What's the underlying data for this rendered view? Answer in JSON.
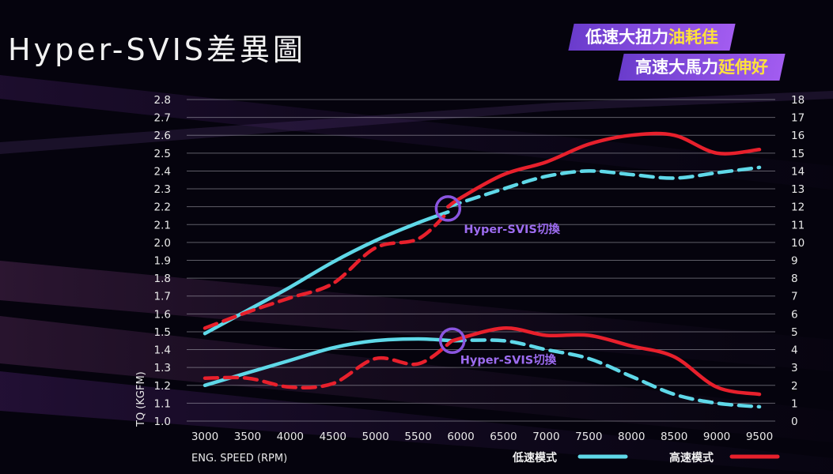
{
  "page": {
    "title": "Hyper-SVIS差異圖",
    "banner1": {
      "text": "低速大扭力",
      "highlight": "油耗佳"
    },
    "banner2": {
      "text": "高速大馬力",
      "highlight": "延伸好"
    }
  },
  "colors": {
    "low_speed": "#5fd8e8",
    "high_speed": "#e8202c",
    "accent": "#8a55e0",
    "annotation": "#9d6cf0"
  },
  "chart_data": {
    "type": "line",
    "xlabel": "ENG. SPEED (RPM)",
    "ylabel": "TQ (KGFM)",
    "xlim": [
      3000,
      9500
    ],
    "ylim": [
      1.0,
      2.8
    ],
    "ylim_right": [
      0,
      18
    ],
    "x_ticks": [
      "3000",
      "3500",
      "4000",
      "4500",
      "5000",
      "5500",
      "6000",
      "6500",
      "7000",
      "7500",
      "8000",
      "8500",
      "9000",
      "9500"
    ],
    "y_ticks": [
      "1.0",
      "1.1",
      "1.2",
      "1.3",
      "1.4",
      "1.5",
      "1.6",
      "1.7",
      "1.8",
      "1.9",
      "2.0",
      "2.1",
      "2.2",
      "2.3",
      "2.4",
      "2.5",
      "2.6",
      "2.7",
      "2.8"
    ],
    "y_right_ticks": [
      "0",
      "1",
      "2",
      "3",
      "4",
      "5",
      "6",
      "7",
      "8",
      "9",
      "10",
      "11",
      "12",
      "13",
      "14",
      "15",
      "16",
      "17",
      "18"
    ],
    "grid": true,
    "legend": {
      "position": "bottom-right",
      "items": [
        {
          "name": "低速模式",
          "series": "low"
        },
        {
          "name": "高速模式",
          "series": "high"
        }
      ]
    },
    "annotations": [
      {
        "text": "Hyper-SVIS切換",
        "x": 5850,
        "y_right": 11.9
      },
      {
        "text": "Hyper-SVIS切換",
        "x": 5900,
        "y": 1.45
      }
    ],
    "series": [
      {
        "key": "low_torque",
        "mode": "low",
        "axis": "left",
        "style": "solid",
        "x": [
          3000,
          3500,
          4000,
          4500,
          5000,
          5500,
          5850
        ],
        "y": [
          1.49,
          1.62,
          1.75,
          1.89,
          2.01,
          2.11,
          2.17
        ]
      },
      {
        "key": "low_power",
        "mode": "low",
        "axis": "right",
        "style": "dashed",
        "x": [
          5850,
          6500,
          7000,
          7500,
          8000,
          8500,
          9000,
          9500
        ],
        "y": [
          12.0,
          13.0,
          13.7,
          14.0,
          13.8,
          13.6,
          13.9,
          14.2
        ]
      },
      {
        "key": "high_power",
        "mode": "high",
        "axis": "right",
        "style": "solid",
        "x": [
          5850,
          6000,
          6500,
          7000,
          7500,
          8000,
          8500,
          9000,
          9500
        ],
        "y": [
          12.0,
          12.5,
          13.8,
          14.5,
          15.5,
          16.0,
          16.0,
          15.0,
          15.2
        ]
      },
      {
        "key": "high_torque",
        "mode": "high",
        "axis": "left",
        "style": "dashed",
        "x": [
          3000,
          3500,
          4000,
          4500,
          5000,
          5500,
          5850
        ],
        "y": [
          1.52,
          1.61,
          1.69,
          1.77,
          1.97,
          2.02,
          2.17
        ]
      },
      {
        "key": "low_torque_2",
        "mode": "low",
        "axis": "left",
        "style": "solid",
        "x": [
          3000,
          3500,
          4000,
          4500,
          5000,
          5500,
          5900
        ],
        "y": [
          1.2,
          1.27,
          1.34,
          1.41,
          1.45,
          1.46,
          1.45
        ]
      },
      {
        "key": "low_power_2",
        "mode": "low",
        "axis": "right",
        "style": "dashed",
        "x": [
          5900,
          6500,
          7000,
          7500,
          8000,
          8500,
          9000,
          9500
        ],
        "y": [
          4.5,
          4.5,
          4.0,
          3.5,
          2.5,
          1.5,
          1.0,
          0.8
        ]
      },
      {
        "key": "high_power_2",
        "mode": "high",
        "axis": "right",
        "style": "solid",
        "x": [
          5900,
          6500,
          7000,
          7500,
          8000,
          8500,
          9000,
          9500
        ],
        "y": [
          4.5,
          5.2,
          4.8,
          4.8,
          4.2,
          3.6,
          1.9,
          1.5
        ]
      },
      {
        "key": "high_torque_2",
        "mode": "high",
        "axis": "left",
        "style": "dashed",
        "x": [
          3000,
          3500,
          4000,
          4500,
          5000,
          5500,
          5900
        ],
        "y": [
          1.24,
          1.24,
          1.19,
          1.21,
          1.35,
          1.32,
          1.45
        ]
      }
    ]
  }
}
